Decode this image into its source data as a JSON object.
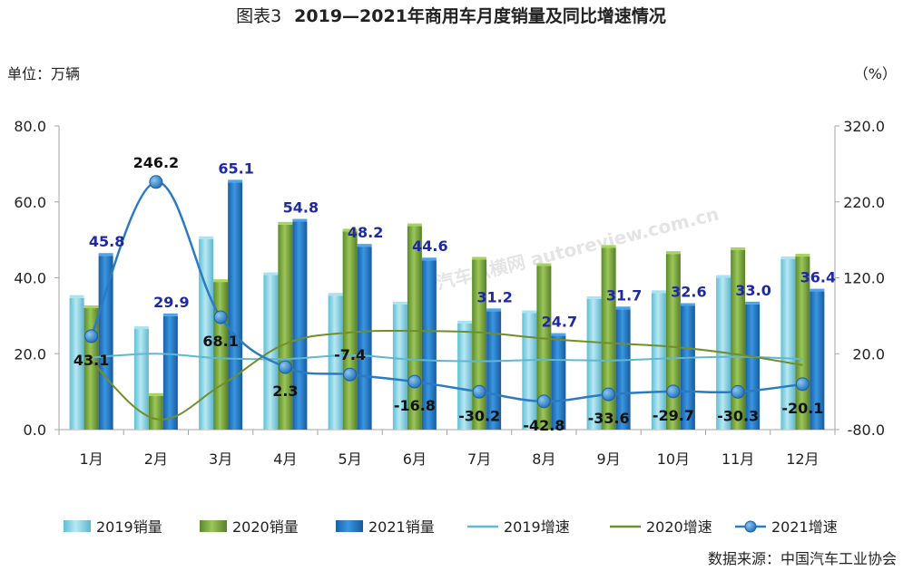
{
  "title": {
    "prefix": "图表3",
    "main": "2019—2021年商用车月度销量及同比增速情况"
  },
  "left_unit": "单位：万辆",
  "right_unit": "（%）",
  "source": "数据来源：中国汽车工业协会",
  "watermark": "汽车纵横网 autoreview.com.cn",
  "colors": {
    "bar2019": "#7ccfe0",
    "bar2020": "#6f9a3a",
    "bar2021": "#1f73c0",
    "line2019": "#5fb8d0",
    "line2020": "#6f8f2a",
    "line2021": "#2b7bc4",
    "label2021": "#1f2aa0",
    "axis": "#a6a6a6",
    "grid": "#d9d9d9"
  },
  "chart_data": {
    "type": "bar+line",
    "categories": [
      "1月",
      "2月",
      "3月",
      "4月",
      "5月",
      "6月",
      "7月",
      "8月",
      "9月",
      "10月",
      "11月",
      "12月"
    ],
    "left_axis": {
      "min": 0,
      "max": 80,
      "ticks": [
        "0.0",
        "20.0",
        "40.0",
        "60.0",
        "80.0"
      ]
    },
    "right_axis": {
      "min": -80,
      "max": 320,
      "ticks": [
        "-80.0",
        "20.0",
        "120.0",
        "220.0",
        "320.0"
      ]
    },
    "bar_series": [
      {
        "name": "2019销量",
        "values": [
          34.7,
          26.5,
          50.2,
          40.7,
          35.3,
          33.0,
          28.0,
          30.7,
          34.4,
          36.0,
          40.0,
          44.9
        ]
      },
      {
        "name": "2020销量",
        "values": [
          32.0,
          8.9,
          38.9,
          54.0,
          52.2,
          53.6,
          44.8,
          43.1,
          47.9,
          46.3,
          47.3,
          45.6
        ]
      },
      {
        "name": "2021销量",
        "values": [
          45.8,
          29.9,
          65.1,
          54.8,
          48.2,
          44.6,
          31.2,
          24.7,
          31.7,
          32.6,
          33.0,
          36.4
        ]
      }
    ],
    "line_series": [
      {
        "name": "2019增速",
        "values": [
          15,
          20,
          14,
          13,
          18,
          12,
          10,
          12,
          11,
          14,
          16,
          13
        ]
      },
      {
        "name": "2020增速",
        "values": [
          10,
          -66,
          -22,
          33,
          48,
          50,
          48,
          40,
          34,
          29,
          19,
          5
        ]
      },
      {
        "name": "2021增速",
        "values": [
          43.1,
          246.2,
          68.1,
          2.3,
          -7.4,
          -16.8,
          -30.2,
          -42.8,
          -33.6,
          -29.7,
          -30.3,
          -20.1
        ]
      }
    ],
    "bar_labels_2021": [
      "45.8",
      "29.9",
      "65.1",
      "54.8",
      "48.2",
      "44.6",
      "31.2",
      "24.7",
      "31.7",
      "32.6",
      "33.0",
      "36.4"
    ],
    "line_labels_2021": [
      "43.1",
      "246.2",
      "68.1",
      "2.3",
      "-7.4",
      "-16.8",
      "-30.2",
      "-42.8",
      "-33.6",
      "-29.7",
      "-30.3",
      "-20.1"
    ],
    "legend": [
      "2019销量",
      "2020销量",
      "2021销量",
      "2019增速",
      "2020增速",
      "2021增速"
    ],
    "legend_position": "bottom",
    "grid": false
  }
}
